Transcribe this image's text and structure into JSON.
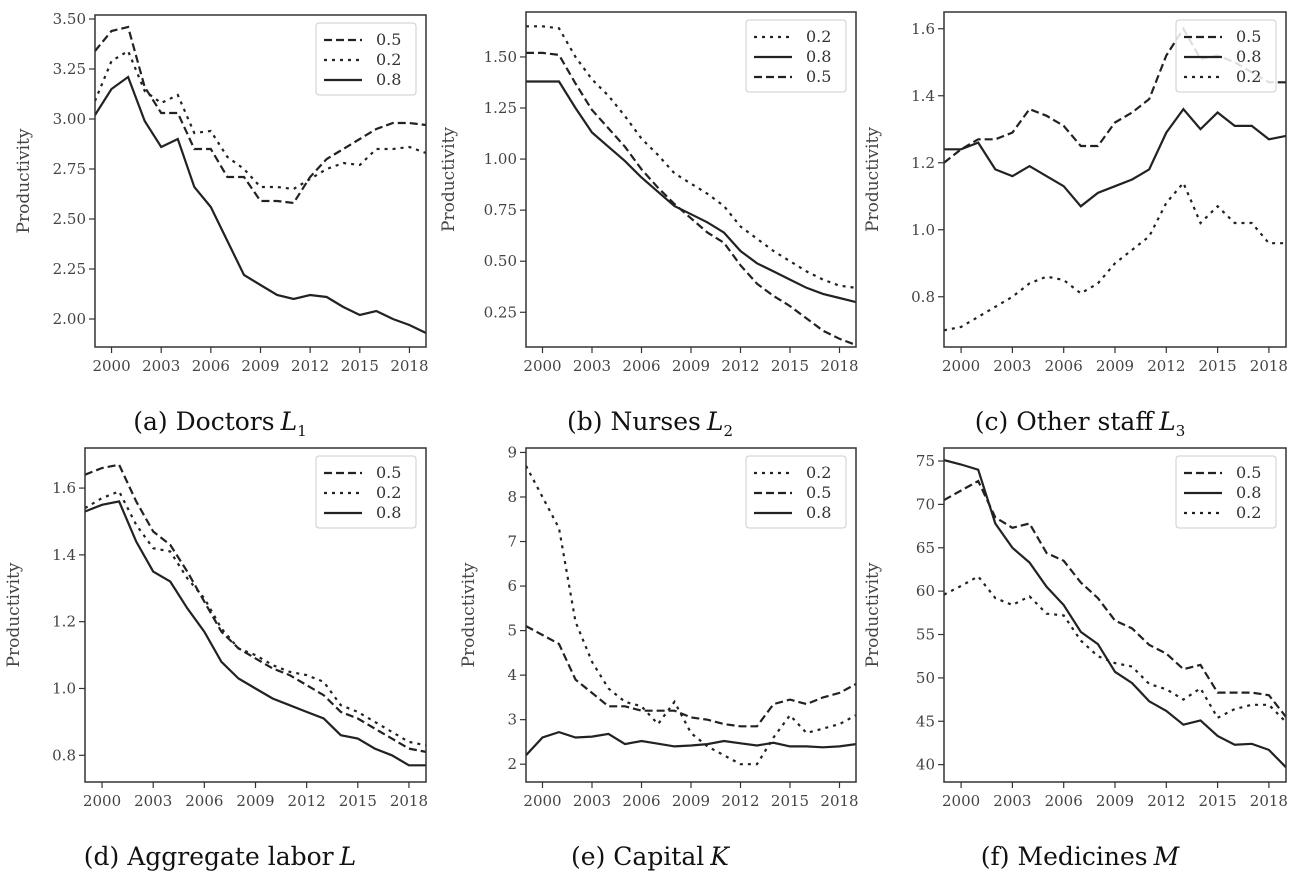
{
  "chart_data": [
    {
      "type": "line",
      "caption": "(a) Doctors",
      "caption_math": "L",
      "caption_sub": "1",
      "ylabel": "Productivity",
      "xlim": [
        1999,
        2019
      ],
      "ylim": [
        1.86,
        3.52
      ],
      "xticks": [
        2000,
        2003,
        2006,
        2009,
        2012,
        2015,
        2018
      ],
      "yticks": [
        "2.00",
        "2.25",
        "2.50",
        "2.75",
        "3.00",
        "3.25",
        "3.50"
      ],
      "x": [
        1999,
        2000,
        2001,
        2002,
        2003,
        2004,
        2005,
        2006,
        2007,
        2008,
        2009,
        2010,
        2011,
        2012,
        2013,
        2014,
        2015,
        2016,
        2017,
        2018,
        2019
      ],
      "legend_position": "top-right",
      "series": [
        {
          "name": "0.5",
          "style": "dashed",
          "values": [
            3.34,
            3.44,
            3.46,
            3.16,
            3.03,
            3.03,
            2.85,
            2.85,
            2.71,
            2.71,
            2.59,
            2.59,
            2.58,
            2.71,
            2.8,
            2.85,
            2.9,
            2.95,
            2.98,
            2.98,
            2.97
          ]
        },
        {
          "name": "0.2",
          "style": "dotted",
          "values": [
            3.09,
            3.29,
            3.34,
            3.14,
            3.08,
            3.12,
            2.93,
            2.94,
            2.81,
            2.75,
            2.66,
            2.66,
            2.65,
            2.7,
            2.75,
            2.78,
            2.77,
            2.85,
            2.85,
            2.86,
            2.83
          ]
        },
        {
          "name": "0.8",
          "style": "solid",
          "values": [
            3.02,
            3.15,
            3.21,
            2.99,
            2.86,
            2.9,
            2.66,
            2.56,
            2.39,
            2.22,
            2.17,
            2.12,
            2.1,
            2.12,
            2.11,
            2.06,
            2.02,
            2.04,
            2.0,
            1.97,
            1.93
          ]
        }
      ]
    },
    {
      "type": "line",
      "caption": "(b) Nurses",
      "caption_math": "L",
      "caption_sub": "2",
      "ylabel": "Productivity",
      "xlim": [
        1999,
        2019
      ],
      "ylim": [
        0.08,
        1.72
      ],
      "xticks": [
        2000,
        2003,
        2006,
        2009,
        2012,
        2015,
        2018
      ],
      "yticks": [
        "0.25",
        "0.50",
        "0.75",
        "1.00",
        "1.25",
        "1.50"
      ],
      "x": [
        1999,
        2000,
        2001,
        2002,
        2003,
        2004,
        2005,
        2006,
        2007,
        2008,
        2009,
        2010,
        2011,
        2012,
        2013,
        2014,
        2015,
        2016,
        2017,
        2018,
        2019
      ],
      "legend_position": "top-right",
      "series": [
        {
          "name": "0.2",
          "style": "dotted",
          "values": [
            1.65,
            1.65,
            1.64,
            1.5,
            1.39,
            1.31,
            1.21,
            1.1,
            1.02,
            0.93,
            0.88,
            0.83,
            0.77,
            0.67,
            0.61,
            0.55,
            0.5,
            0.45,
            0.41,
            0.38,
            0.37
          ]
        },
        {
          "name": "0.8",
          "style": "solid",
          "values": [
            1.38,
            1.38,
            1.38,
            1.25,
            1.13,
            1.06,
            0.99,
            0.91,
            0.84,
            0.77,
            0.73,
            0.69,
            0.64,
            0.55,
            0.49,
            0.45,
            0.41,
            0.37,
            0.34,
            0.32,
            0.3
          ]
        },
        {
          "name": "0.5",
          "style": "dashed",
          "values": [
            1.52,
            1.52,
            1.51,
            1.37,
            1.24,
            1.15,
            1.06,
            0.95,
            0.86,
            0.78,
            0.71,
            0.64,
            0.59,
            0.48,
            0.39,
            0.33,
            0.28,
            0.22,
            0.16,
            0.12,
            0.09
          ]
        }
      ]
    },
    {
      "type": "line",
      "caption": "(c) Other staff",
      "caption_math": "L",
      "caption_sub": "3",
      "ylabel": "Productivity",
      "xlim": [
        1999,
        2019
      ],
      "ylim": [
        0.65,
        1.65
      ],
      "xticks": [
        2000,
        2003,
        2006,
        2009,
        2012,
        2015,
        2018
      ],
      "yticks": [
        "0.8",
        "1.0",
        "1.2",
        "1.4",
        "1.6"
      ],
      "x": [
        1999,
        2000,
        2001,
        2002,
        2003,
        2004,
        2005,
        2006,
        2007,
        2008,
        2009,
        2010,
        2011,
        2012,
        2013,
        2014,
        2015,
        2016,
        2017,
        2018,
        2019
      ],
      "legend_position": "top-right",
      "series": [
        {
          "name": "0.5",
          "style": "dashed",
          "values": [
            1.2,
            1.24,
            1.27,
            1.27,
            1.29,
            1.36,
            1.34,
            1.31,
            1.25,
            1.25,
            1.32,
            1.35,
            1.39,
            1.52,
            1.6,
            1.51,
            1.52,
            1.5,
            1.47,
            1.44,
            1.44
          ]
        },
        {
          "name": "0.8",
          "style": "solid",
          "values": [
            1.24,
            1.24,
            1.26,
            1.18,
            1.16,
            1.19,
            1.16,
            1.13,
            1.07,
            1.11,
            1.13,
            1.15,
            1.18,
            1.29,
            1.36,
            1.3,
            1.35,
            1.31,
            1.31,
            1.27,
            1.28
          ]
        },
        {
          "name": "0.2",
          "style": "dotted",
          "values": [
            0.7,
            0.71,
            0.74,
            0.77,
            0.8,
            0.84,
            0.86,
            0.85,
            0.81,
            0.84,
            0.9,
            0.94,
            0.98,
            1.08,
            1.14,
            1.02,
            1.07,
            1.02,
            1.02,
            0.96,
            0.96
          ]
        }
      ]
    },
    {
      "type": "line",
      "caption": "(d) Aggregate labor",
      "caption_math": "L",
      "caption_sub": "",
      "ylabel": "Productivity",
      "xlim": [
        1999,
        2019
      ],
      "ylim": [
        0.72,
        1.72
      ],
      "xticks": [
        2000,
        2003,
        2006,
        2009,
        2012,
        2015,
        2018
      ],
      "yticks": [
        "0.8",
        "1.0",
        "1.2",
        "1.4",
        "1.6"
      ],
      "x": [
        1999,
        2000,
        2001,
        2002,
        2003,
        2004,
        2005,
        2006,
        2007,
        2008,
        2009,
        2010,
        2011,
        2012,
        2013,
        2014,
        2015,
        2016,
        2017,
        2018,
        2019
      ],
      "legend_position": "top-right",
      "series": [
        {
          "name": "0.5",
          "style": "dashed",
          "values": [
            1.64,
            1.66,
            1.67,
            1.56,
            1.47,
            1.43,
            1.35,
            1.26,
            1.17,
            1.12,
            1.09,
            1.06,
            1.04,
            1.01,
            0.98,
            0.93,
            0.91,
            0.88,
            0.85,
            0.82,
            0.81
          ]
        },
        {
          "name": "0.2",
          "style": "dotted",
          "values": [
            1.54,
            1.57,
            1.59,
            1.49,
            1.42,
            1.41,
            1.33,
            1.27,
            1.18,
            1.12,
            1.1,
            1.07,
            1.05,
            1.04,
            1.02,
            0.95,
            0.93,
            0.9,
            0.87,
            0.84,
            0.83
          ]
        },
        {
          "name": "0.8",
          "style": "solid",
          "values": [
            1.53,
            1.55,
            1.56,
            1.44,
            1.35,
            1.32,
            1.24,
            1.17,
            1.08,
            1.03,
            1.0,
            0.97,
            0.95,
            0.93,
            0.91,
            0.86,
            0.85,
            0.82,
            0.8,
            0.77,
            0.77
          ]
        }
      ]
    },
    {
      "type": "line",
      "caption": "(e) Capital",
      "caption_math": "K",
      "caption_sub": "",
      "ylabel": "Productivity",
      "xlim": [
        1999,
        2019
      ],
      "ylim": [
        1.6,
        9.1
      ],
      "xticks": [
        2000,
        2003,
        2006,
        2009,
        2012,
        2015,
        2018
      ],
      "yticks": [
        "2",
        "3",
        "4",
        "5",
        "6",
        "7",
        "8",
        "9"
      ],
      "x": [
        1999,
        2000,
        2001,
        2002,
        2003,
        2004,
        2005,
        2006,
        2007,
        2008,
        2009,
        2010,
        2011,
        2012,
        2013,
        2014,
        2015,
        2016,
        2017,
        2018,
        2019
      ],
      "legend_position": "top-right",
      "series": [
        {
          "name": "0.2",
          "style": "dotted",
          "values": [
            8.7,
            8.0,
            7.3,
            5.2,
            4.3,
            3.7,
            3.4,
            3.3,
            2.9,
            3.4,
            2.7,
            2.4,
            2.2,
            2.0,
            2.0,
            2.6,
            3.1,
            2.7,
            2.8,
            2.9,
            3.1
          ]
        },
        {
          "name": "0.5",
          "style": "dashed",
          "values": [
            5.1,
            4.9,
            4.7,
            3.9,
            3.6,
            3.3,
            3.3,
            3.2,
            3.2,
            3.2,
            3.05,
            3.0,
            2.9,
            2.85,
            2.85,
            3.35,
            3.45,
            3.35,
            3.5,
            3.6,
            3.8
          ]
        },
        {
          "name": "0.8",
          "style": "solid",
          "values": [
            2.2,
            2.6,
            2.72,
            2.6,
            2.62,
            2.68,
            2.45,
            2.52,
            2.46,
            2.4,
            2.42,
            2.45,
            2.52,
            2.47,
            2.42,
            2.48,
            2.4,
            2.4,
            2.38,
            2.4,
            2.45
          ]
        }
      ]
    },
    {
      "type": "line",
      "caption": "(f) Medicines",
      "caption_math": "M",
      "caption_sub": "",
      "ylabel": "Productivity",
      "xlim": [
        1999,
        2019
      ],
      "ylim": [
        38,
        76.5
      ],
      "xticks": [
        2000,
        2003,
        2006,
        2009,
        2012,
        2015,
        2018
      ],
      "yticks": [
        "40",
        "45",
        "50",
        "55",
        "60",
        "65",
        "70",
        "75"
      ],
      "x": [
        1999,
        2000,
        2001,
        2002,
        2003,
        2004,
        2005,
        2006,
        2007,
        2008,
        2009,
        2010,
        2011,
        2012,
        2013,
        2014,
        2015,
        2016,
        2017,
        2018,
        2019
      ],
      "legend_position": "top-right",
      "series": [
        {
          "name": "0.5",
          "style": "dashed",
          "values": [
            70.5,
            71.6,
            72.7,
            68.5,
            67.3,
            67.8,
            64.4,
            63.5,
            61.0,
            59.2,
            56.6,
            55.7,
            53.8,
            52.8,
            51.0,
            51.5,
            48.3,
            48.3,
            48.3,
            48.0,
            45.5
          ]
        },
        {
          "name": "0.8",
          "style": "solid",
          "values": [
            75.1,
            74.6,
            74.0,
            67.8,
            65.0,
            63.3,
            60.5,
            58.4,
            55.3,
            53.9,
            50.7,
            49.4,
            47.3,
            46.2,
            44.6,
            45.1,
            43.3,
            42.3,
            42.4,
            41.7,
            39.7
          ]
        },
        {
          "name": "0.2",
          "style": "dotted",
          "values": [
            59.6,
            60.6,
            61.7,
            59.2,
            58.4,
            59.4,
            57.4,
            57.2,
            54.3,
            52.5,
            51.7,
            51.3,
            49.3,
            48.7,
            47.5,
            48.8,
            45.4,
            46.4,
            46.9,
            46.9,
            44.9
          ]
        }
      ]
    }
  ]
}
